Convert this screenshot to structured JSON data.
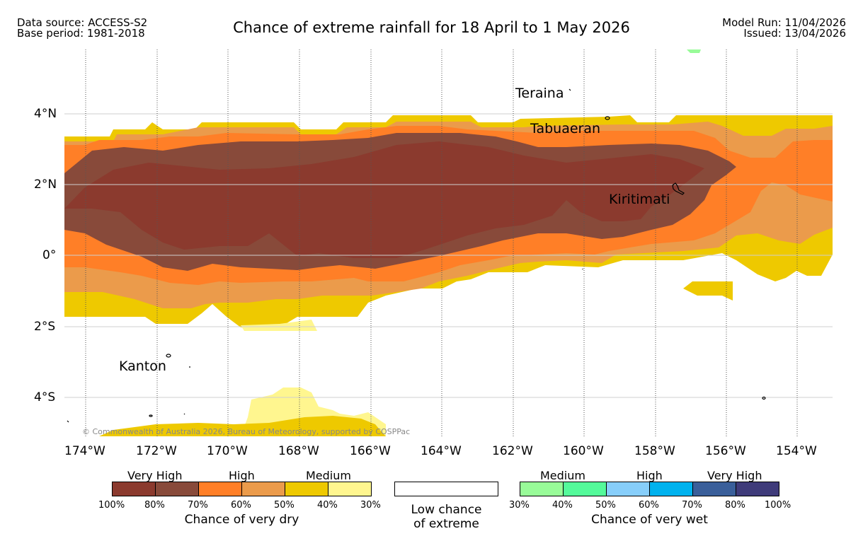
{
  "header": {
    "data_source": "Data source: ACCESS-S2",
    "base_period": "Base period: 1981-2018",
    "title": "Chance of extreme rainfall for 18 April to 1 May 2026",
    "model_run": "Model Run: 11/04/2026",
    "issued": "Issued: 13/04/2026"
  },
  "map": {
    "lat_labels": [
      "4°N",
      "2°N",
      "0°",
      "2°S",
      "4°S"
    ],
    "lon_labels": [
      "174°W",
      "172°W",
      "170°W",
      "168°W",
      "166°W",
      "164°W",
      "162°W",
      "160°W",
      "158°W",
      "156°W",
      "154°W"
    ],
    "places": {
      "teraina": "Teraina",
      "tabuaeran": "Tabuaeran",
      "kiritimati": "Kiritimati",
      "kanton": "Kanton"
    },
    "copyright": "© Commonwealth of Australia 2026, Bureau of Meteorology, supported by COSPPac"
  },
  "legend": {
    "dry": {
      "groups": [
        "Very High",
        "High",
        "Medium"
      ],
      "colors": [
        "#8b3a2e",
        "#884a3a",
        "#ff7f27",
        "#eb9b4b",
        "#eec900",
        "#fff68f"
      ],
      "ticks": [
        "100%",
        "80%",
        "70%",
        "60%",
        "50%",
        "40%",
        "30%"
      ],
      "caption": "Chance of very dry"
    },
    "neutral": {
      "caption_line1": "Low chance",
      "caption_line2": "of extreme",
      "color": "#ffffff"
    },
    "wet": {
      "groups": [
        "Medium",
        "High",
        "Very High"
      ],
      "colors": [
        "#98fb98",
        "#54fa9a",
        "#87cefa",
        "#00b2ee",
        "#3a5f9a",
        "#3f3b7a"
      ],
      "ticks": [
        "30%",
        "40%",
        "50%",
        "60%",
        "70%",
        "80%",
        "100%"
      ],
      "caption": "Chance of very wet"
    }
  }
}
